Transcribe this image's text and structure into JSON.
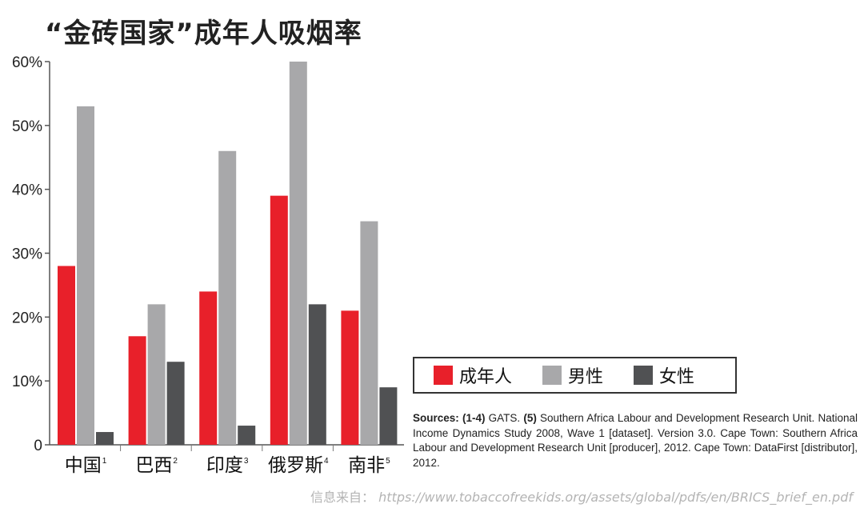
{
  "title": "“金砖国家”成年人吸烟率",
  "legend": {
    "items": [
      {
        "label": "成年人",
        "color": "#e8202a"
      },
      {
        "label": "男性",
        "color": "#a8a8aa"
      },
      {
        "label": "女性",
        "color": "#505153"
      }
    ]
  },
  "sources": {
    "prefix": "Sources: ",
    "ref1": "(1-4)",
    "text1": " GATS. ",
    "ref2": "(5)",
    "text2": " Southern Africa Labour and Development Research Unit. National Income Dynamics Study 2008, Wave 1 [dataset]. Version 3.0. Cape Town: Southern Africa Labour and Development Research Unit [producer], 2012. Cape Town: DataFirst [distributor], 2012."
  },
  "source_footer": {
    "label": "信息来自：",
    "url": "https://www.tobaccofreekids.org/assets/global/pdfs/en/BRICS_brief_en.pdf"
  },
  "chart_data": {
    "type": "bar",
    "title": "“金砖国家”成年人吸烟率",
    "categories": [
      "中国",
      "巴西",
      "印度",
      "俄罗斯",
      "南非"
    ],
    "category_superscripts": [
      "1",
      "2",
      "3",
      "4",
      "5"
    ],
    "series": [
      {
        "name": "成年人",
        "color": "#e8202a",
        "values": [
          28,
          17,
          24,
          39,
          21
        ]
      },
      {
        "name": "男性",
        "color": "#a8a8aa",
        "values": [
          53,
          22,
          46,
          60,
          35
        ]
      },
      {
        "name": "女性",
        "color": "#505153",
        "values": [
          2,
          13,
          3,
          22,
          9
        ]
      }
    ],
    "yticks": [
      "0",
      "10%",
      "20%",
      "30%",
      "40%",
      "50%",
      "60%"
    ],
    "ylim": [
      0,
      60
    ],
    "xlabel": "",
    "ylabel": "",
    "grid": false,
    "legend_position": "right"
  }
}
